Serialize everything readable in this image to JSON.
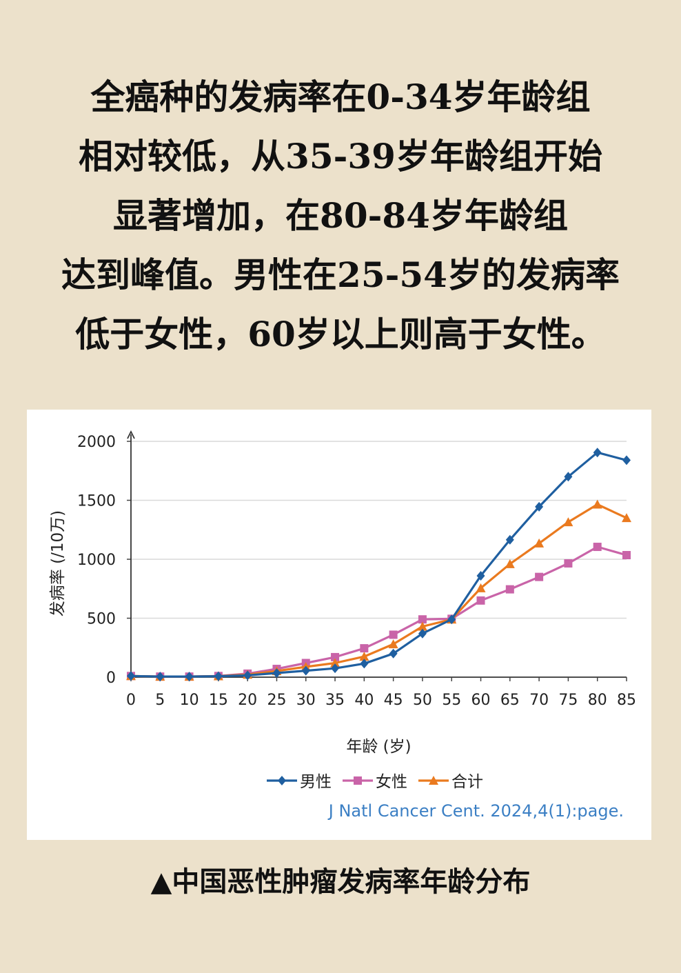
{
  "headline": [
    "全癌种的发病率在0-34岁年龄组",
    "相对较低，从35-39岁年龄组开始",
    "显著增加，在80-84岁年龄组",
    "达到峰值。男性在25-54岁的发病率",
    "低于女性，60岁以上则高于女性。"
  ],
  "caption": "▲中国恶性肿瘤发病率年龄分布",
  "chart_data": {
    "type": "line",
    "x": [
      0,
      5,
      10,
      15,
      20,
      25,
      30,
      35,
      40,
      45,
      50,
      55,
      60,
      65,
      70,
      75,
      80,
      85
    ],
    "xlabel": "年龄 (岁)",
    "ylabel": "发病率 (/10万)",
    "ylim": [
      0,
      2000
    ],
    "yticks": [
      0,
      500,
      1000,
      1500,
      2000
    ],
    "grid": true,
    "legend_position": "bottom-center",
    "source": "J Natl Cancer Cent. 2024,4(1):page.",
    "series": [
      {
        "name": "男性",
        "color": "#1f5fa0",
        "marker": "diamond",
        "values": [
          10,
          5,
          5,
          8,
          15,
          35,
          55,
          75,
          115,
          200,
          370,
          490,
          860,
          1165,
          1445,
          1700,
          1905,
          1840
        ]
      },
      {
        "name": "女性",
        "color": "#c964a8",
        "marker": "square",
        "values": [
          10,
          5,
          5,
          10,
          30,
          70,
          120,
          170,
          245,
          360,
          490,
          495,
          650,
          745,
          850,
          965,
          1105,
          1035
        ]
      },
      {
        "name": "合计",
        "color": "#ea7a1f",
        "marker": "triangle",
        "values": [
          10,
          5,
          5,
          9,
          22,
          52,
          88,
          120,
          175,
          280,
          430,
          490,
          755,
          960,
          1135,
          1315,
          1465,
          1350
        ]
      }
    ]
  }
}
